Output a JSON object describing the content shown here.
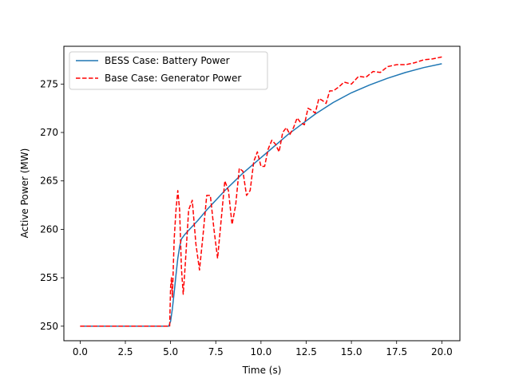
{
  "chart_data": {
    "type": "line",
    "title": "",
    "xlabel": "Time (s)",
    "ylabel": "Active Power (MW)",
    "xlim": [
      -0.9,
      21.0
    ],
    "ylim": [
      248.5,
      278.9
    ],
    "xticks": [
      0.0,
      2.5,
      5.0,
      7.5,
      10.0,
      12.5,
      15.0,
      17.5,
      20.0
    ],
    "xtick_labels": [
      "0.0",
      "2.5",
      "5.0",
      "7.5",
      "10.0",
      "12.5",
      "15.0",
      "17.5",
      "20.0"
    ],
    "yticks": [
      250,
      255,
      260,
      265,
      270,
      275
    ],
    "ytick_labels": [
      "250",
      "255",
      "260",
      "265",
      "270",
      "275"
    ],
    "grid": false,
    "legend_position": "upper-left",
    "series": [
      {
        "name": "BESS Case: Battery Power",
        "color": "#1f77b4",
        "style": "solid",
        "x": [
          0.0,
          4.9,
          5.0,
          5.1,
          5.2,
          5.3,
          5.4,
          5.5,
          5.6,
          5.8,
          6.0,
          6.5,
          7.0,
          7.5,
          8.0,
          8.5,
          9.0,
          9.5,
          10.0,
          10.5,
          11.0,
          11.5,
          12.0,
          13.0,
          14.0,
          15.0,
          16.0,
          17.0,
          18.0,
          19.0,
          20.0
        ],
        "y": [
          250,
          250,
          250.5,
          251.8,
          253.5,
          255.3,
          257.0,
          258.2,
          259.0,
          259.5,
          259.9,
          260.9,
          262.0,
          263.0,
          264.0,
          264.9,
          265.8,
          266.6,
          267.4,
          268.2,
          269.0,
          269.8,
          270.5,
          271.9,
          273.1,
          274.1,
          274.9,
          275.6,
          276.2,
          276.7,
          277.1
        ]
      },
      {
        "name": "Base Case: Generator Power",
        "color": "#ff0000",
        "style": "dashed",
        "x": [
          0.0,
          4.95,
          5.0,
          5.05,
          5.1,
          5.2,
          5.3,
          5.4,
          5.5,
          5.6,
          5.7,
          5.8,
          6.0,
          6.2,
          6.4,
          6.6,
          6.8,
          7.0,
          7.2,
          7.4,
          7.6,
          7.8,
          8.0,
          8.2,
          8.4,
          8.6,
          8.8,
          9.0,
          9.2,
          9.4,
          9.6,
          9.8,
          10.0,
          10.2,
          10.4,
          10.6,
          10.8,
          11.0,
          11.2,
          11.4,
          11.6,
          11.8,
          12.0,
          12.2,
          12.4,
          12.6,
          12.8,
          13.0,
          13.2,
          13.4,
          13.6,
          13.8,
          14.0,
          14.3,
          14.6,
          15.0,
          15.4,
          15.8,
          16.2,
          16.6,
          17.0,
          17.5,
          18.0,
          18.5,
          19.0,
          19.5,
          20.0
        ],
        "y": [
          250,
          250,
          254.0,
          255.0,
          253.0,
          259.0,
          262.0,
          264.0,
          262.0,
          256.0,
          253.3,
          256.0,
          262.0,
          263.0,
          258.5,
          255.8,
          259.5,
          263.5,
          263.5,
          260.0,
          257.0,
          261.0,
          265.0,
          264.0,
          260.5,
          262.5,
          266.3,
          266.0,
          263.5,
          264.0,
          267.0,
          268.0,
          266.5,
          266.5,
          268.3,
          269.2,
          268.8,
          268.0,
          270.0,
          270.5,
          269.8,
          270.5,
          271.5,
          271.0,
          270.8,
          272.5,
          272.3,
          272.0,
          273.5,
          273.3,
          273.0,
          274.3,
          274.3,
          274.7,
          275.2,
          275.0,
          275.8,
          275.7,
          276.3,
          276.2,
          276.8,
          277.0,
          277.0,
          277.2,
          277.5,
          277.6,
          277.8
        ]
      }
    ]
  }
}
